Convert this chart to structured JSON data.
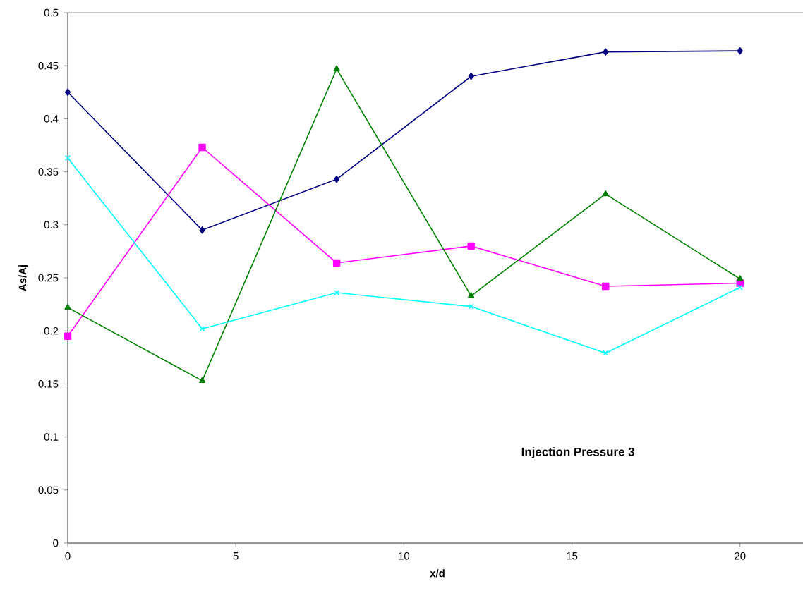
{
  "chart_data": {
    "type": "line",
    "xlabel": "x/d",
    "ylabel": "As/Aj",
    "annotations": [
      "Injection Pressure 3"
    ],
    "x": [
      0,
      4,
      8,
      12,
      16,
      20
    ],
    "series": [
      {
        "color": "#000080",
        "marker": "diamond",
        "values": [
          0.425,
          0.295,
          0.343,
          0.44,
          0.463,
          0.464
        ]
      },
      {
        "color": "#ff00ff",
        "marker": "square",
        "values": [
          0.195,
          0.373,
          0.264,
          0.28,
          0.242,
          0.245
        ]
      },
      {
        "color": "#008000",
        "marker": "triangle",
        "values": [
          0.222,
          0.153,
          0.447,
          0.233,
          0.329,
          0.249
        ]
      },
      {
        "color": "#00ffff",
        "marker": "cross",
        "values": [
          0.363,
          0.202,
          0.236,
          0.223,
          0.179,
          0.241
        ]
      }
    ],
    "xlim": [
      0,
      22
    ],
    "xticks": [
      0,
      5,
      10,
      15,
      20
    ],
    "ylim": [
      0,
      0.5
    ],
    "yticks": [
      0,
      0.05,
      0.1,
      0.15,
      0.2,
      0.25,
      0.3,
      0.35,
      0.4,
      0.45,
      0.5
    ]
  }
}
